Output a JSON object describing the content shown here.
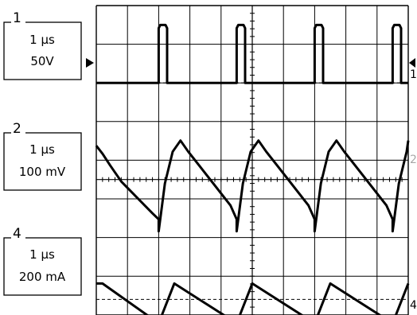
{
  "chart_data": {
    "type": "line",
    "title": "",
    "grid": true,
    "grid_divisions": {
      "x": 10,
      "y": 8
    },
    "x_range_div": [
      0,
      10
    ],
    "channels": [
      {
        "number": "1",
        "time_scale": "1 μs",
        "volt_scale": "50V",
        "right_marker": "1",
        "reference_div": 2.0,
        "series": [
          {
            "x": [
              0,
              2.0,
              2.0,
              2.05,
              2.22,
              2.27,
              2.27,
              4.5,
              4.5,
              4.55,
              4.72,
              4.77,
              4.77,
              7.0,
              7.0,
              7.05,
              7.22,
              7.27,
              7.27,
              9.5,
              9.5,
              9.55,
              9.72,
              9.77,
              9.77,
              10
            ],
            "y": [
              0,
              0,
              1.72,
              1.82,
              1.82,
              1.72,
              0,
              0,
              1.72,
              1.82,
              1.82,
              1.72,
              0,
              0,
              1.72,
              1.82,
              1.82,
              1.72,
              0,
              0,
              1.72,
              1.82,
              1.82,
              1.72,
              0,
              0
            ]
          }
        ]
      },
      {
        "number": "2",
        "time_scale": "1 μs",
        "volt_scale": "100 mV",
        "right_marker": "2",
        "reference_div": 4.5,
        "series": [
          {
            "x": [
              0,
              0.2,
              0.45,
              0.8,
              1.3,
              1.8,
              2.0,
              2.0,
              2.2,
              2.45,
              2.7,
              2.95,
              3.3,
              3.8,
              4.3,
              4.5,
              4.5,
              4.7,
              4.95,
              5.2,
              5.45,
              5.8,
              6.3,
              6.8,
              7.0,
              7.0,
              7.2,
              7.45,
              7.7,
              7.95,
              8.3,
              8.8,
              9.3,
              9.5,
              9.5,
              9.7,
              9.95,
              10
            ],
            "y": [
              0.85,
              0.65,
              0.35,
              -0.05,
              -0.45,
              -0.85,
              -1.0,
              -1.3,
              -0.1,
              0.7,
              0.98,
              0.7,
              0.35,
              -0.15,
              -0.65,
              -1.0,
              -1.3,
              -0.1,
              0.7,
              0.98,
              0.7,
              0.35,
              -0.15,
              -0.65,
              -1.0,
              -1.3,
              -0.1,
              0.7,
              0.98,
              0.7,
              0.35,
              -0.15,
              -0.65,
              -1.0,
              -1.3,
              -0.1,
              0.7,
              0.98
            ]
          }
        ]
      },
      {
        "number": "4",
        "time_scale": "1 μs",
        "volt_scale": "200 mA",
        "right_marker": "4",
        "reference_div": 7.6,
        "series": [
          {
            "x": [
              0,
              0.2,
              2.0,
              2.5,
              4.5,
              5.0,
              7.0,
              7.5,
              9.5,
              10
            ],
            "y": [
              0.4,
              0.4,
              -0.6,
              0.4,
              -0.6,
              0.4,
              -0.6,
              0.4,
              -0.6,
              0.4
            ]
          }
        ]
      }
    ]
  },
  "colors": {
    "trace": "#000000",
    "grid": "#000000",
    "background": "#ffffff"
  }
}
